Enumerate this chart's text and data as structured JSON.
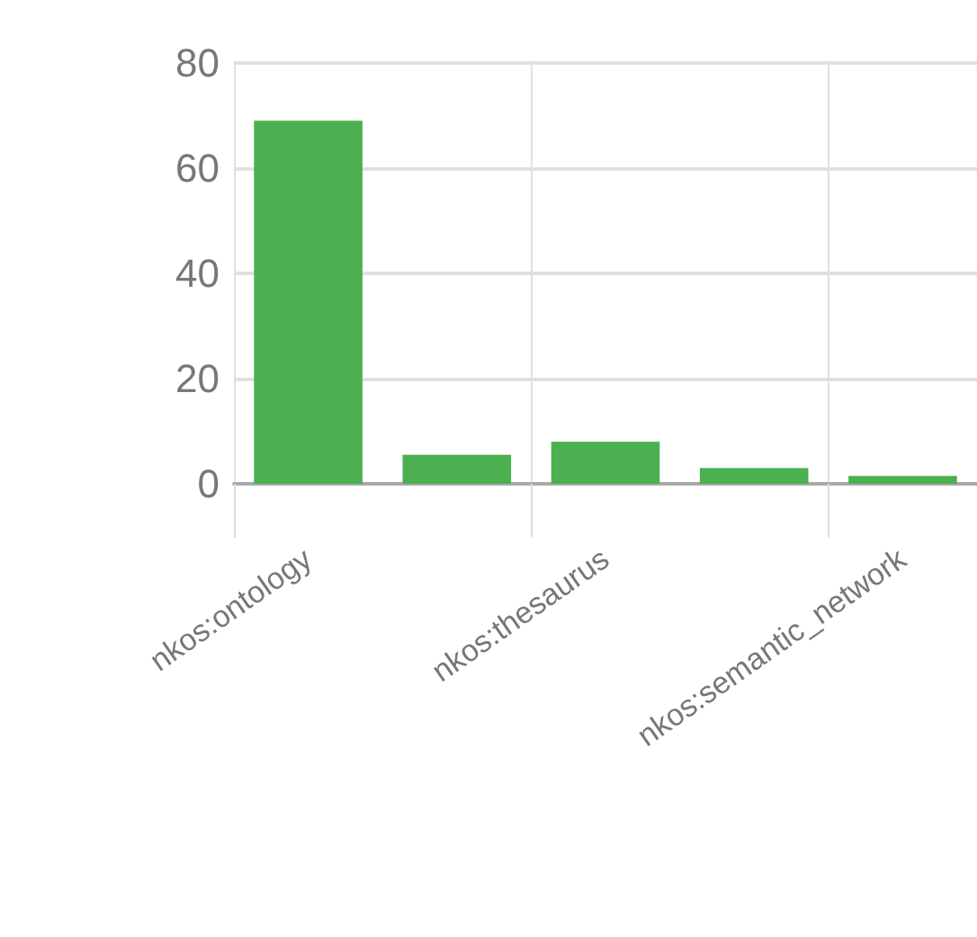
{
  "chart_data": {
    "type": "bar",
    "categories": [
      "nkos:ontology",
      null,
      "nkos:thesaurus",
      null,
      "nkos:semantic_network"
    ],
    "values": [
      69,
      5.5,
      8,
      3,
      1.5
    ],
    "color": "#4caf50",
    "ylim": [
      0,
      80
    ],
    "yticks": [
      0,
      20,
      40,
      60,
      80
    ],
    "grid": true
  }
}
